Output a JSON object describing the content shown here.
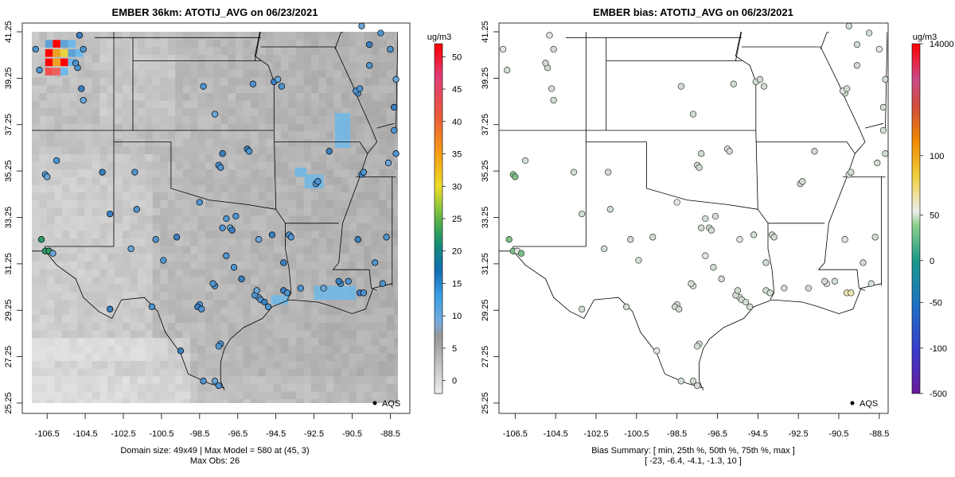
{
  "chart_data": [
    {
      "type": "heatmap",
      "title": "EMBER 36km: ATOTIJ_AVG on 06/23/2021",
      "x_ticks": [
        "-106.5",
        "-104.5",
        "-102.5",
        "-100.5",
        "-98.5",
        "-96.5",
        "-94.5",
        "-92.5",
        "-90.5",
        "-88.5"
      ],
      "y_ticks": [
        "25.25",
        "27.25",
        "29.25",
        "31.25",
        "33.25",
        "35.25",
        "37.25",
        "39.25",
        "41.25"
      ],
      "colorbar": {
        "unit": "ug/m3",
        "ticks": [
          "0",
          "5",
          "10",
          "15",
          "20",
          "25",
          "30",
          "35",
          "40",
          "45",
          "50"
        ],
        "range": [
          -2,
          52
        ]
      },
      "legend": "AQS",
      "caption": [
        "Domain size: 49x49 | Max Model = 580 at (45, 3)",
        "Max Obs: 26"
      ]
    },
    {
      "type": "scatter",
      "title": "EMBER bias: ATOTIJ_AVG on 06/23/2021",
      "x_ticks": [
        "-106.5",
        "-104.5",
        "-102.5",
        "-100.5",
        "-98.5",
        "-96.5",
        "-94.5",
        "-92.5",
        "-90.5",
        "-88.5"
      ],
      "y_ticks": [
        "25.25",
        "27.25",
        "29.25",
        "31.25",
        "33.25",
        "35.25",
        "37.25",
        "39.25",
        "41.25"
      ],
      "colorbar": {
        "unit": "ug/m3",
        "ticks": [
          "14000",
          "100",
          "50",
          "0",
          "-50",
          "-100",
          "-500"
        ]
      },
      "legend": "AQS",
      "caption": [
        "Bias Summary: [ min, 25th %, 50th %, 75th %, max ]",
        "[ -23,   -6.4,   -4.1,   -1.3,   10 ]"
      ]
    }
  ]
}
